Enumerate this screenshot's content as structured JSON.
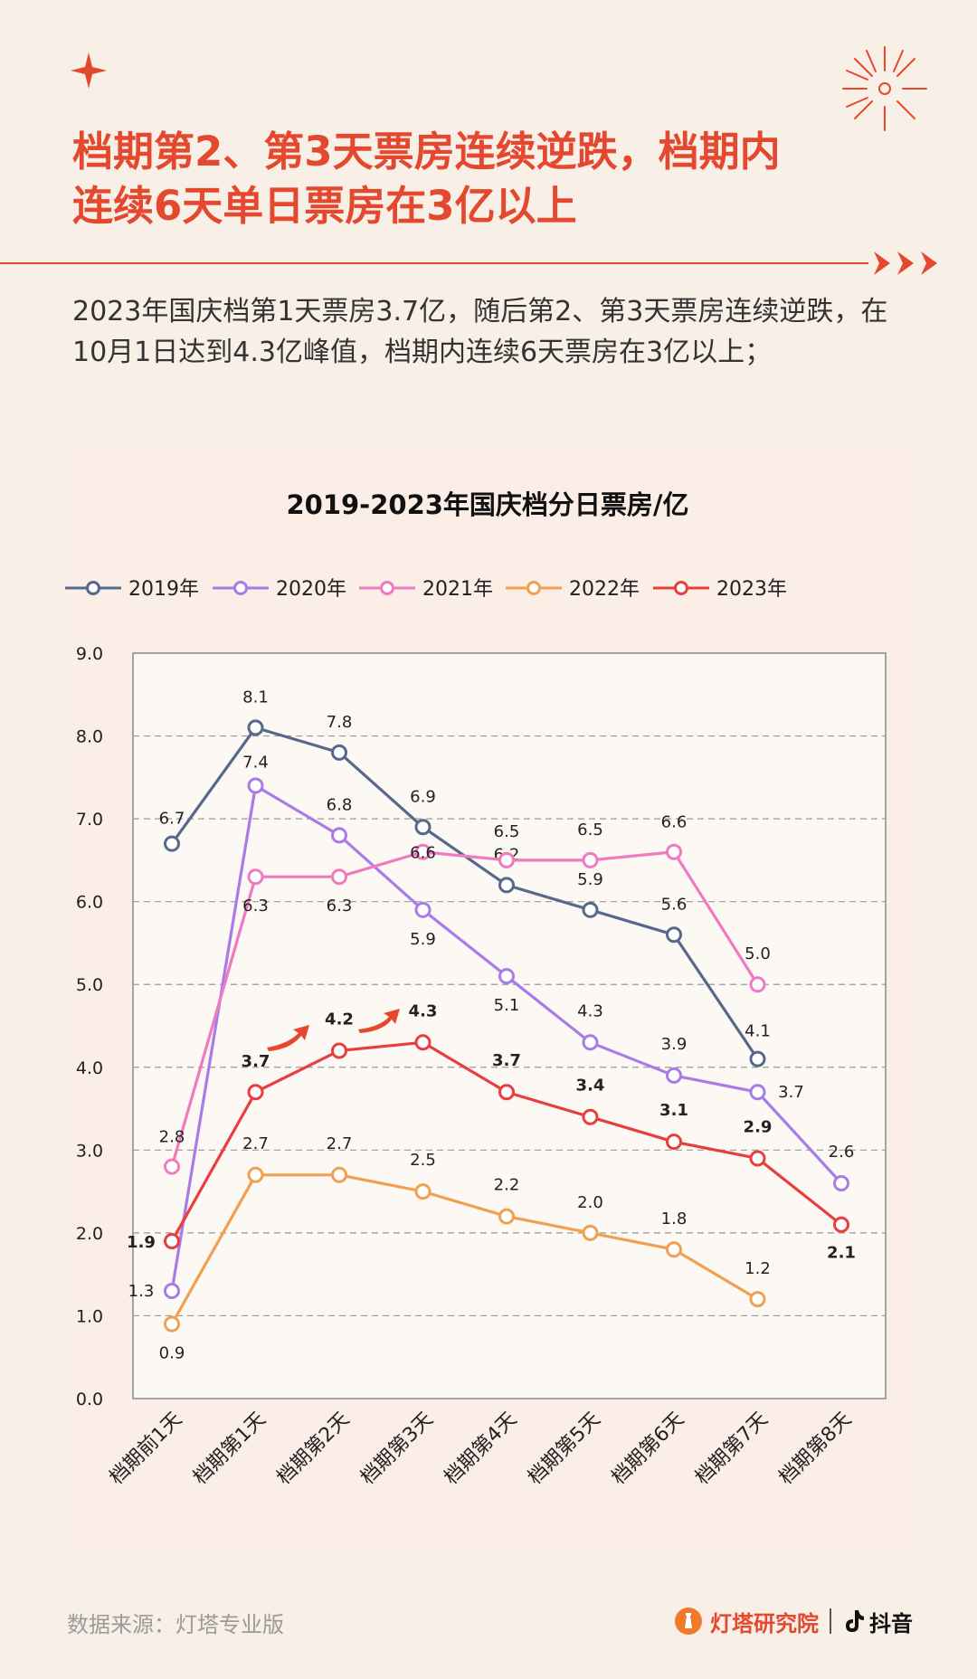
{
  "header": {
    "title_line1": "档期第2、第3天票房连续逆跌，档期内",
    "title_line2": "连续6天单日票房在3亿以上",
    "subtitle": "2023年国庆档第1天票房3.7亿，随后第2、第3天票房连续逆跌，在10月1日达到4.3亿峰值，档期内连续6天票房在3亿以上；"
  },
  "colors": {
    "accent": "#e4482f",
    "s2019": "#56698a",
    "s2020": "#a97be8",
    "s2021": "#f07ac0",
    "s2022": "#f0a050",
    "s2023": "#e83e3e"
  },
  "chart_data": {
    "type": "line",
    "title": "2019-2023年国庆档分日票房/亿",
    "categories": [
      "档期前1天",
      "档期第1天",
      "档期第2天",
      "档期第3天",
      "档期第4天",
      "档期第5天",
      "档期第6天",
      "档期第7天",
      "档期第8天"
    ],
    "ylim": [
      0,
      9
    ],
    "yticks": [
      "0.0",
      "1.0",
      "2.0",
      "3.0",
      "4.0",
      "5.0",
      "6.0",
      "7.0",
      "8.0",
      "9.0"
    ],
    "grid": "horizontal dashed",
    "legend_position": "top",
    "series": [
      {
        "name": "2019年",
        "values": [
          6.7,
          8.1,
          7.8,
          6.9,
          6.2,
          5.9,
          5.6,
          4.1,
          null
        ]
      },
      {
        "name": "2020年",
        "values": [
          1.3,
          7.4,
          6.8,
          5.9,
          5.1,
          4.3,
          3.9,
          3.7,
          2.6
        ]
      },
      {
        "name": "2021年",
        "values": [
          2.8,
          6.3,
          6.3,
          6.6,
          6.5,
          6.5,
          6.6,
          5.0,
          null
        ]
      },
      {
        "name": "2022年",
        "values": [
          0.9,
          2.7,
          2.7,
          2.5,
          2.2,
          2.0,
          1.8,
          1.2,
          null
        ]
      },
      {
        "name": "2023年",
        "values": [
          1.9,
          3.7,
          4.2,
          4.3,
          3.7,
          3.4,
          3.1,
          2.9,
          2.1
        ]
      }
    ]
  },
  "footer": {
    "source": "数据来源：灯塔专业版",
    "brand": "灯塔研究院",
    "platform": "抖音"
  }
}
